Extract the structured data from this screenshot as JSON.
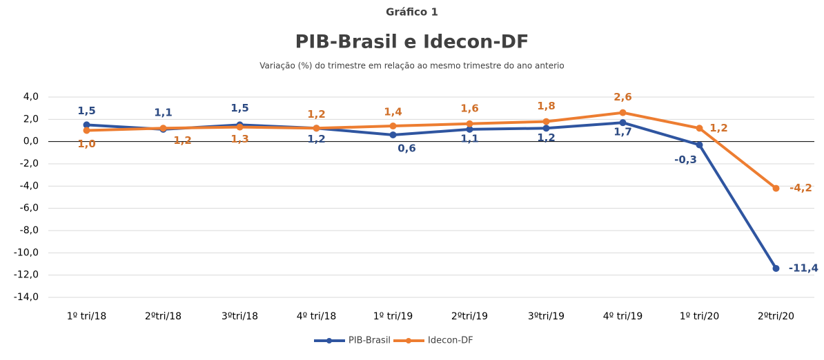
{
  "chart_data": {
    "type": "line",
    "title": "PIB-Brasil e Idecon-DF",
    "supertitle": "Gráfico 1",
    "subtitle": "Variação (%) do trimestre em relação ao mesmo trimestre do ano anterio",
    "categories": [
      "1º tri/18",
      "2ºtri/18",
      "3ºtri/18",
      "4º tri/18",
      "1º tri/19",
      "2ºtri/19",
      "3ºtri/19",
      "4º tri/19",
      "1º tri/20",
      "2ºtri/20"
    ],
    "series": [
      {
        "name": "PIB-Brasil",
        "color": "#2f55a0",
        "label_color": "#2c4a82",
        "values": [
          1.5,
          1.1,
          1.5,
          1.2,
          0.6,
          1.1,
          1.2,
          1.7,
          -0.3,
          -11.4
        ],
        "value_labels": [
          "1,5",
          "1,1",
          "1,5",
          "1,2",
          "0,6",
          "1,1",
          "1,2",
          "1,7",
          "-0,3",
          "-11,4"
        ]
      },
      {
        "name": "Idecon-DF",
        "color": "#ed7d31",
        "label_color": "#d0702a",
        "values": [
          1.0,
          1.2,
          1.3,
          1.2,
          1.4,
          1.6,
          1.8,
          2.6,
          1.2,
          -4.2
        ],
        "value_labels": [
          "1,0",
          "1,2",
          "1,3",
          "1,2",
          "1,4",
          "1,6",
          "1,8",
          "2,6",
          "1,2",
          "-4,2"
        ]
      }
    ],
    "ylim": [
      -14,
      4
    ],
    "yticks": [
      {
        "value": 4,
        "label": "4,0"
      },
      {
        "value": 2,
        "label": "2,0"
      },
      {
        "value": 0,
        "label": "0,0"
      },
      {
        "value": -2,
        "label": "-2,0"
      },
      {
        "value": -4,
        "label": "-4,0"
      },
      {
        "value": -6,
        "label": "-6,0"
      },
      {
        "value": -8,
        "label": "-8,0"
      },
      {
        "value": -10,
        "label": "-10,0"
      },
      {
        "value": -12,
        "label": "-12,0"
      },
      {
        "value": -14,
        "label": "-14,0"
      }
    ],
    "grid": true,
    "legend": "bottom"
  }
}
